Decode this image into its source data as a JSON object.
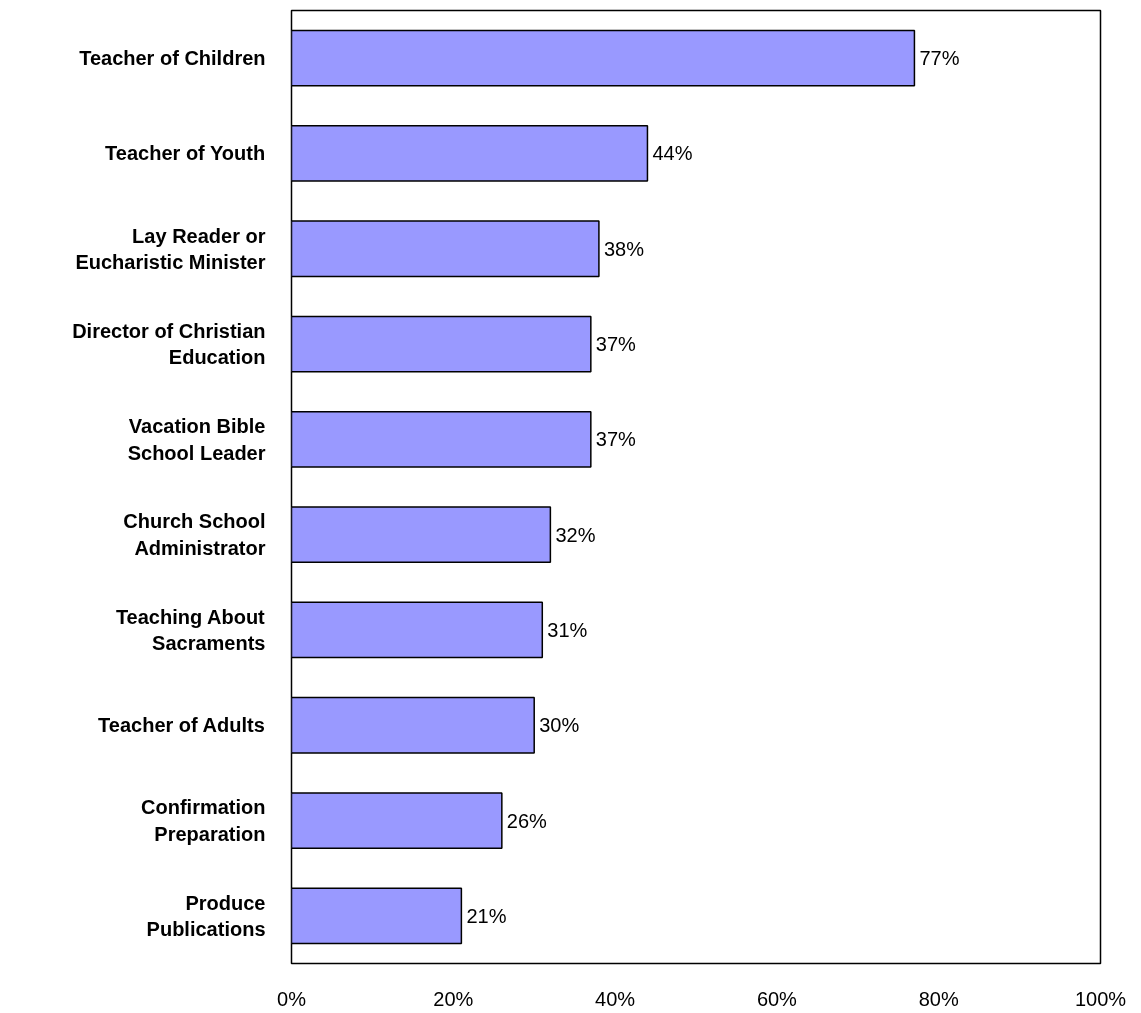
{
  "chart_data": {
    "type": "bar",
    "orientation": "horizontal",
    "categories": [
      "Teacher of Children",
      "Teacher of Youth",
      "Lay Reader or\nEucharistic Minister",
      "Director of Christian\nEducation",
      "Vacation Bible\nSchool Leader",
      "Church School\nAdministrator",
      "Teaching About\nSacraments",
      "Teacher of Adults",
      "Confirmation\nPreparation",
      "Produce\nPublications"
    ],
    "values": [
      77,
      44,
      38,
      37,
      37,
      32,
      31,
      30,
      26,
      21
    ],
    "value_labels": [
      "77%",
      "44%",
      "38%",
      "37%",
      "37%",
      "32%",
      "31%",
      "30%",
      "26%",
      "21%"
    ],
    "color": "#9999ff",
    "xlim": [
      0,
      100
    ],
    "xticks": [
      {
        "value": 0,
        "label": "0%"
      },
      {
        "value": 20,
        "label": "20%"
      },
      {
        "value": 40,
        "label": "40%"
      },
      {
        "value": 60,
        "label": "60%"
      },
      {
        "value": 80,
        "label": "80%"
      },
      {
        "value": 100,
        "label": "100%"
      }
    ],
    "grid": false
  }
}
